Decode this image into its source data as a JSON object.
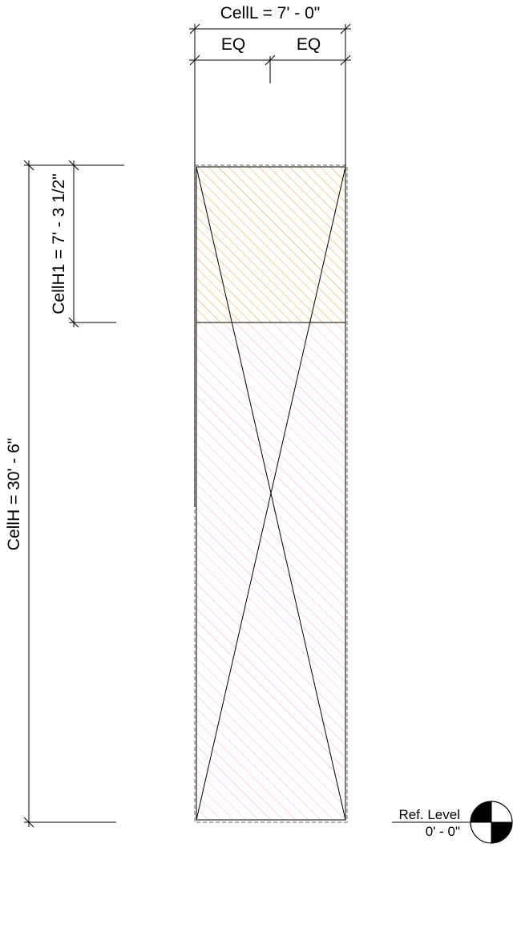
{
  "dimensions": {
    "cell_length": "CellL = 7' - 0\"",
    "eq_left": "EQ",
    "eq_right": "EQ",
    "cell_height_1": "CellH1 = 7' - 3 1/2\"",
    "cell_height": "CellH = 30' - 6\""
  },
  "level": {
    "name": "Ref. Level",
    "elevation": "0' - 0\""
  },
  "colors": {
    "line": "#000000",
    "upper_hatch": "#e8a020",
    "lower_hatch": "#f4b4a8",
    "dashed_outline": "#808080",
    "marker_fill": "#000000"
  }
}
